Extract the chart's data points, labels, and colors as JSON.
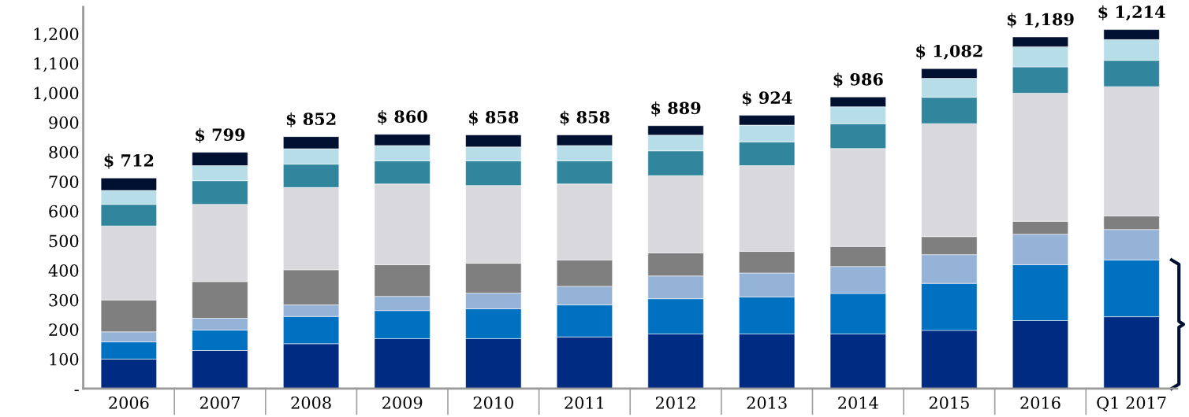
{
  "chart_data": {
    "type": "bar",
    "stacked": true,
    "categories": [
      "2006",
      "2007",
      "2008",
      "2009",
      "2010",
      "2011",
      "2012",
      "2013",
      "2014",
      "2015",
      "2016",
      "Q1 2017"
    ],
    "series": [
      {
        "color": "#002b82",
        "values": [
          100,
          129,
          152,
          169,
          169,
          175,
          185,
          185,
          185,
          197,
          230,
          243
        ]
      },
      {
        "color": "#0070c0",
        "values": [
          58,
          69,
          92,
          95,
          101,
          108,
          119,
          125,
          137,
          159,
          189,
          192
        ]
      },
      {
        "color": "#95b3d7",
        "values": [
          34,
          40,
          39,
          48,
          53,
          63,
          77,
          81,
          91,
          97,
          103,
          103
        ]
      },
      {
        "color": "#7f7f7f",
        "values": [
          108,
          124,
          119,
          107,
          101,
          89,
          78,
          73,
          68,
          61,
          44,
          46
        ]
      },
      {
        "color": "#d9d8dd",
        "values": [
          250,
          261,
          278,
          273,
          263,
          257,
          261,
          290,
          331,
          382,
          433,
          437
        ]
      },
      {
        "color": "#31859c",
        "values": [
          73,
          80,
          79,
          78,
          83,
          78,
          84,
          80,
          84,
          89,
          89,
          89
        ]
      },
      {
        "color": "#b7dde8",
        "values": [
          47,
          51,
          52,
          52,
          47,
          52,
          53,
          57,
          57,
          64,
          68,
          70
        ]
      },
      {
        "color": "#001030",
        "values": [
          42,
          45,
          41,
          38,
          41,
          36,
          32,
          33,
          33,
          33,
          33,
          34
        ]
      }
    ],
    "totals": [
      "$ 712",
      "$ 799",
      "$ 852",
      "$ 860",
      "$ 858",
      "$ 858",
      "$ 889",
      "$ 924",
      "$ 986",
      "$ 1,082",
      "$ 1,189",
      "$ 1,214"
    ],
    "ylim": [
      0,
      1290
    ],
    "yticks": [
      {
        "value": 0,
        "label": "-"
      },
      100,
      200,
      300,
      400,
      500,
      600,
      700,
      800,
      900,
      {
        "value": 1000,
        "label": "1,000"
      },
      {
        "value": 1100,
        "label": "1,100"
      },
      {
        "value": 1200,
        "label": "1,200"
      }
    ],
    "grid": false,
    "legend": false
  }
}
